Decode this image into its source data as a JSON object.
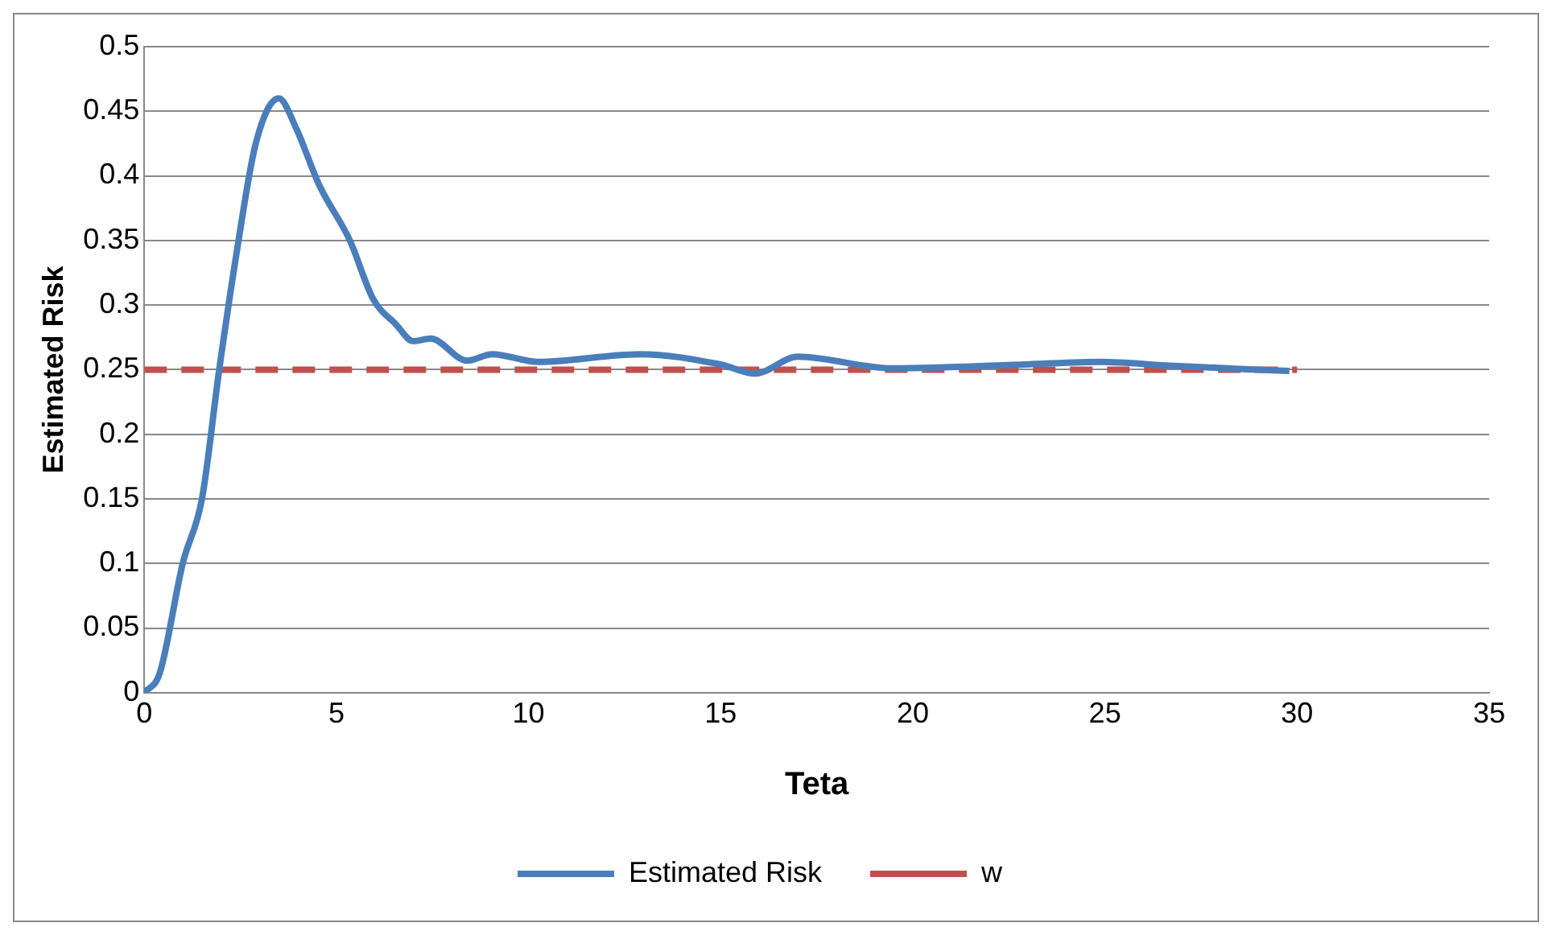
{
  "chart_data": {
    "type": "line",
    "xlabel": "Teta",
    "ylabel": "Estimated Risk",
    "xlim": [
      0,
      35
    ],
    "xticks": [
      0,
      5,
      10,
      15,
      20,
      25,
      30,
      35
    ],
    "ylim": [
      0,
      0.5
    ],
    "yticks": [
      0,
      0.05,
      0.1,
      0.15,
      0.2,
      0.25,
      0.3,
      0.35,
      0.4,
      0.45,
      0.5
    ],
    "grid": "y",
    "legend": "bottom",
    "marker": "none",
    "series": [
      {
        "name": "Estimated Risk",
        "color": "#4a7ebb",
        "line_style": "solid",
        "x": [
          0,
          0.4,
          1,
          1.5,
          1.95,
          2.4,
          2.9,
          3.5,
          3.95,
          4.55,
          5.35,
          5.95,
          6.55,
          7,
          7.45,
          8.4,
          9.05,
          10.25,
          12.9,
          15,
          15.9,
          17,
          19.5,
          22.9,
          24.9,
          26.7,
          29.8
        ],
        "values": [
          0,
          0.015,
          0.1,
          0.15,
          0.25,
          0.34,
          0.425,
          0.46,
          0.437,
          0.393,
          0.35,
          0.305,
          0.285,
          0.272,
          0.274,
          0.257,
          0.262,
          0.256,
          0.262,
          0.254,
          0.247,
          0.26,
          0.251,
          0.254,
          0.256,
          0.253,
          0.249
        ]
      },
      {
        "name": "w",
        "color": "#c0504d",
        "line_style": "dashed",
        "x": [
          0,
          30
        ],
        "values": [
          0.25,
          0.25
        ]
      }
    ]
  }
}
